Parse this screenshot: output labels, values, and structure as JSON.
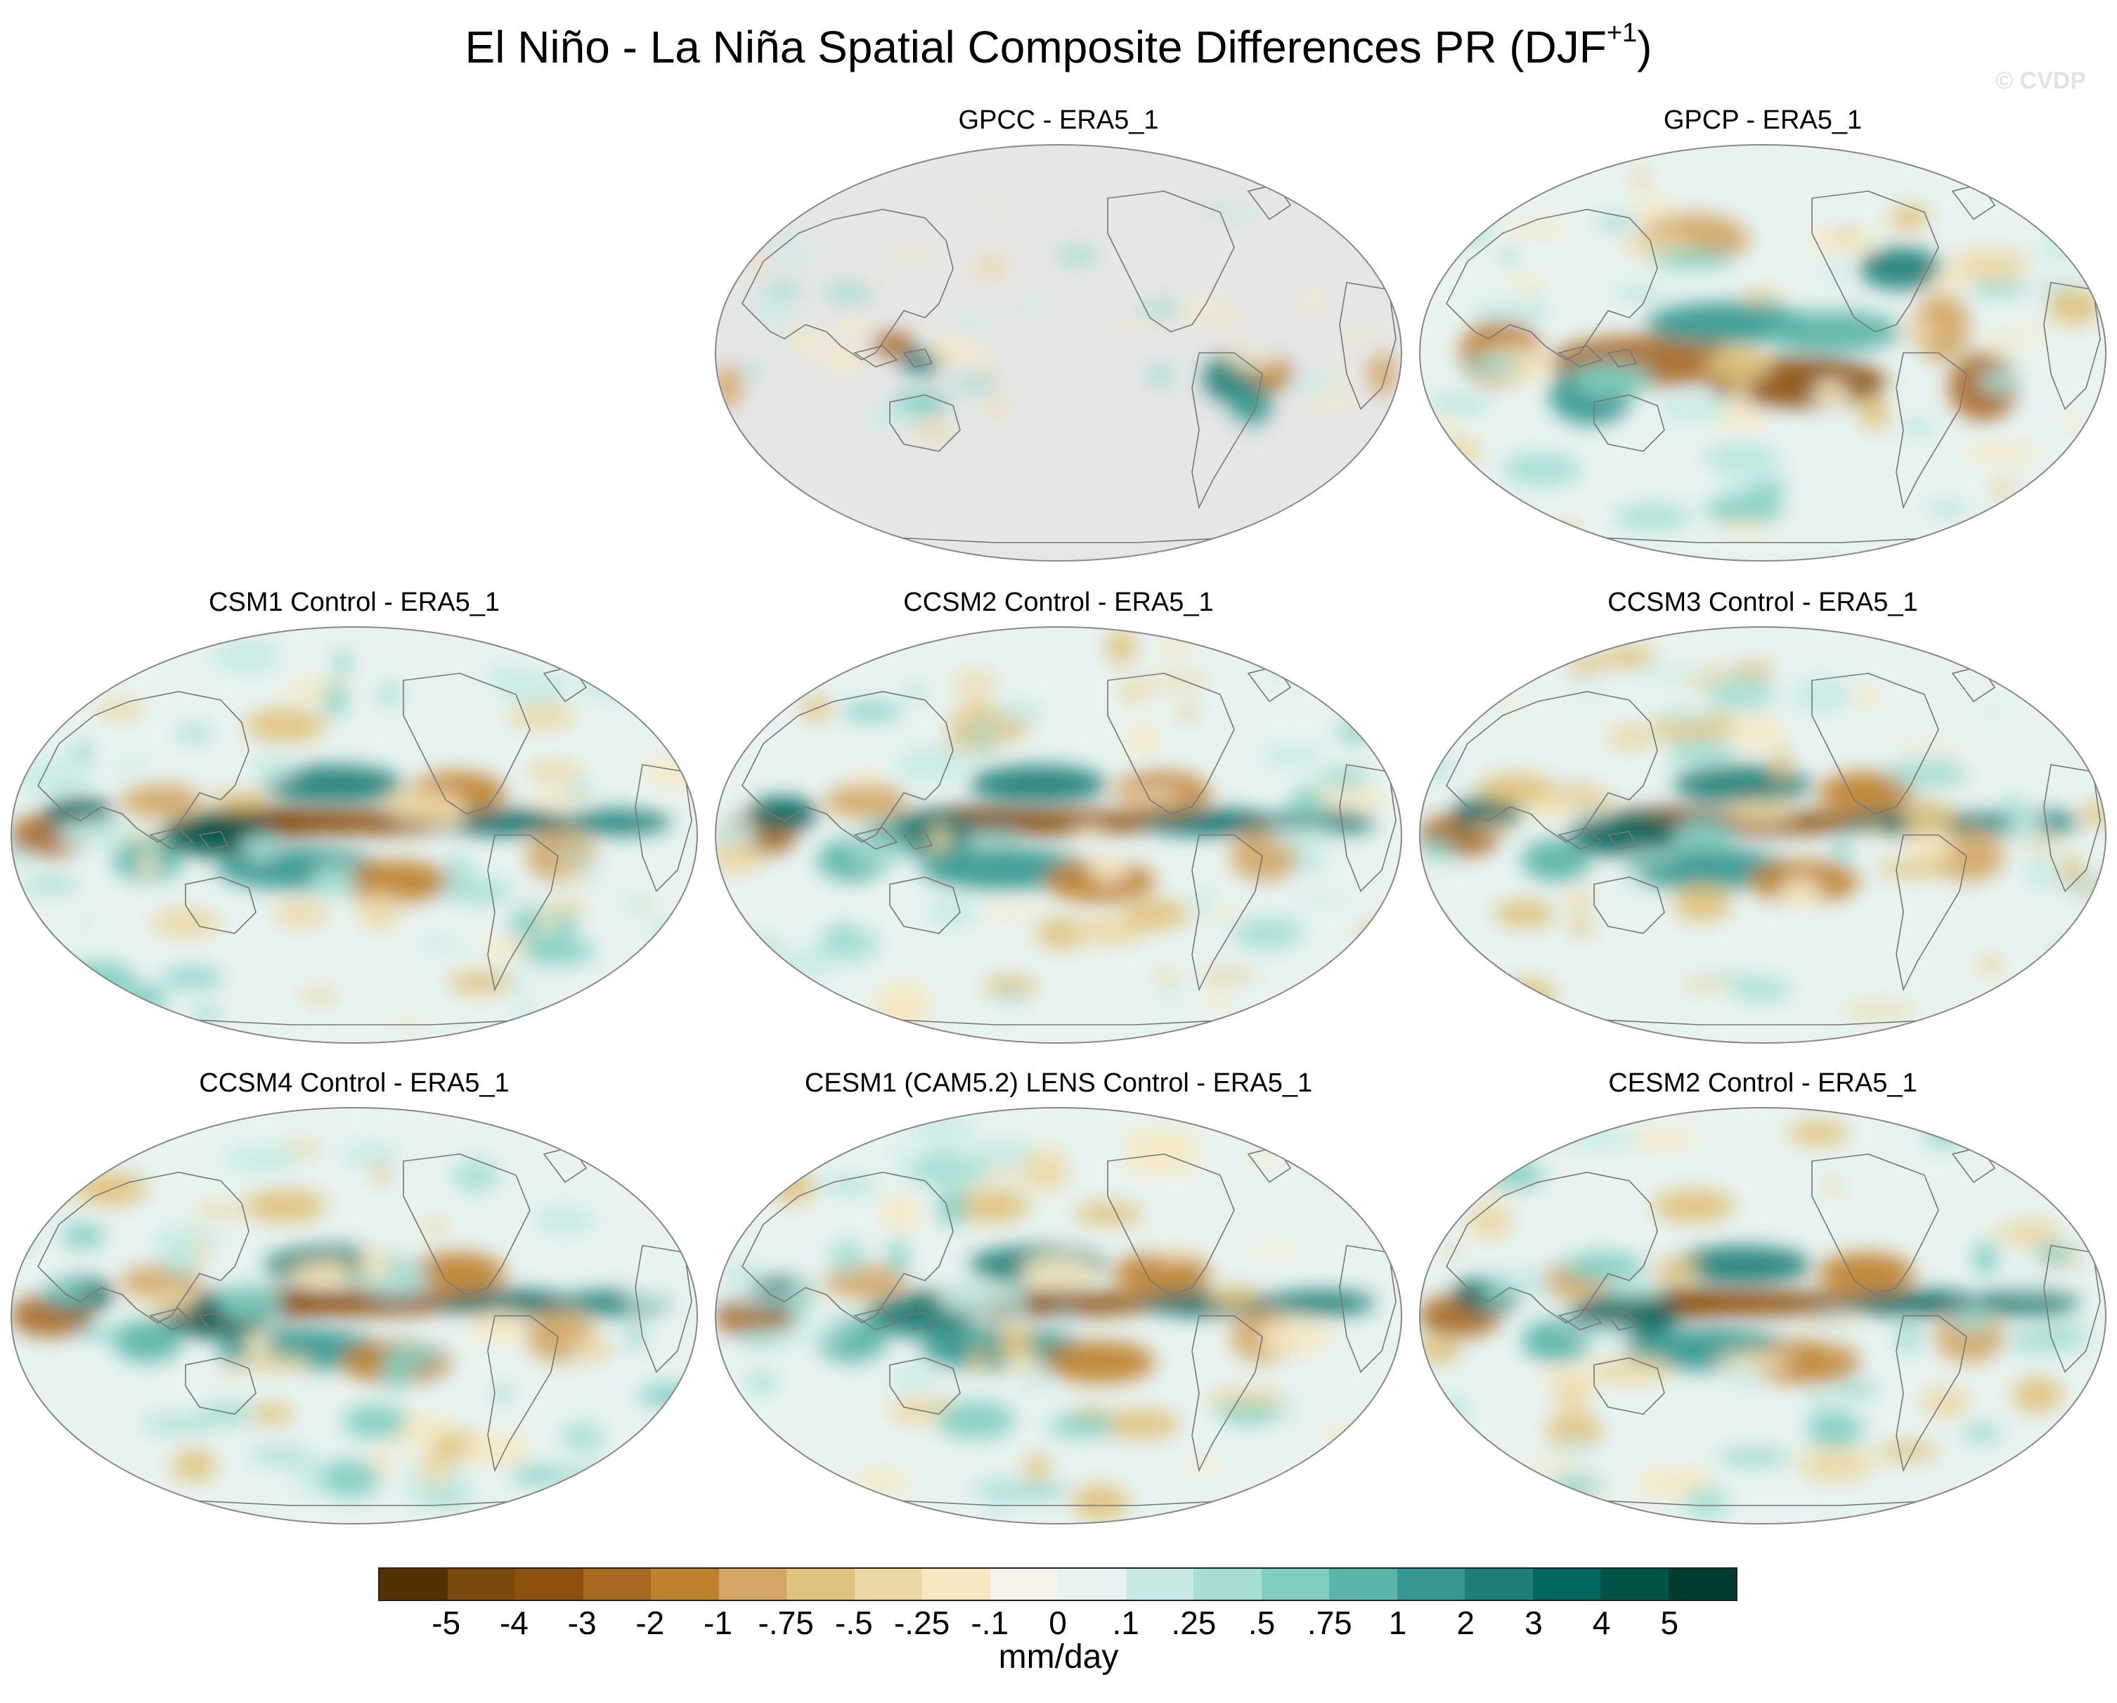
{
  "title": {
    "main": "El Niño - La Niña Spatial Composite Differences PR (DJF",
    "sup": "+1",
    "close": ")"
  },
  "watermark": "© CVDP",
  "panels": [
    {
      "title": "GPCC - ERA5_1",
      "id": "gpcc",
      "land_only": true,
      "pattern": 0
    },
    {
      "title": "GPCP - ERA5_1",
      "id": "gpcp",
      "land_only": false,
      "pattern": 1
    },
    {
      "title": "CSM1 Control - ERA5_1",
      "id": "csm1",
      "land_only": false,
      "pattern": 2
    },
    {
      "title": "CCSM2 Control - ERA5_1",
      "id": "ccsm2",
      "land_only": false,
      "pattern": 3
    },
    {
      "title": "CCSM3 Control - ERA5_1",
      "id": "ccsm3",
      "land_only": false,
      "pattern": 4
    },
    {
      "title": "CCSM4 Control - ERA5_1",
      "id": "ccsm4",
      "land_only": false,
      "pattern": 5
    },
    {
      "title": "CESM1 (CAM5.2) LENS Control - ERA5_1",
      "id": "cesm1",
      "land_only": false,
      "pattern": 6
    },
    {
      "title": "CESM2 Control - ERA5_1",
      "id": "cesm2",
      "land_only": false,
      "pattern": 7
    }
  ],
  "colorbar": {
    "colors": [
      "#543005",
      "#7a4a0c",
      "#8c5110",
      "#a86a22",
      "#bf812d",
      "#d3a665",
      "#dfc27d",
      "#ecd8a6",
      "#f6e8c3",
      "#f5f2ec",
      "#e8f3f1",
      "#c7eae5",
      "#a6ddd4",
      "#80cdc1",
      "#5ab4a8",
      "#35978f",
      "#1d7f76",
      "#01665e",
      "#005347",
      "#003c30"
    ],
    "labels": [
      "-5",
      "-4",
      "-3",
      "-2",
      "-1",
      "-.75",
      "-.5",
      "-.25",
      "-.1",
      "0",
      ".1",
      ".25",
      ".5",
      ".75",
      "1",
      "2",
      "3",
      "4",
      "5"
    ],
    "units": "mm/day"
  },
  "map_colors": {
    "land_mask": "#e6e6e6",
    "coast": "#777777",
    "outline": "#888888"
  }
}
